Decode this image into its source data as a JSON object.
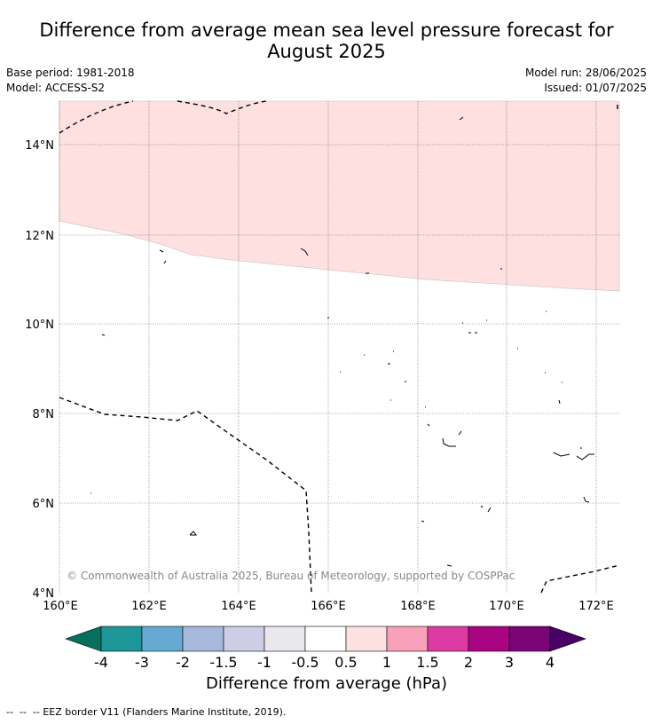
{
  "title_line1": "Difference from average mean sea level pressure forecast for",
  "title_line2": "August 2025",
  "meta": {
    "base_period": "Base period: 1981-2018",
    "model": "Model: ACCESS-S2",
    "model_run": "Model run: 28/06/2025",
    "issued": "Issued: 01/07/2025"
  },
  "map": {
    "lon_ticks": [
      "160°E",
      "162°E",
      "164°E",
      "166°E",
      "168°E",
      "170°E",
      "172°E"
    ],
    "lat_ticks": [
      "14°N",
      "12°N",
      "10°N",
      "8°N",
      "6°N",
      "4°N"
    ],
    "copyright": "© Commonwealth of Australia 2025, Bureau of Meteorology, supported by COSPPac",
    "region_fill": "#fde0df",
    "region_category": "0.5 to 1"
  },
  "colorbar": {
    "title": "Difference from average (hPa)",
    "ticks": [
      "-4",
      "-3",
      "-2",
      "-1.5",
      "-1",
      "-0.5",
      "0.5",
      "1",
      "1.5",
      "2",
      "3",
      "4"
    ],
    "colors": [
      "#066f5d",
      "#1e9596",
      "#66aad4",
      "#a6b9da",
      "#cdcde5",
      "#ebe8ed",
      "#ffffff",
      "#fde0e0",
      "#f9a0ba",
      "#dc3ca1",
      "#a90583",
      "#7b0477",
      "#4a0167"
    ]
  },
  "legend": {
    "line_symbol": "--  --  --",
    "text": "EEZ border V11 (Flanders Marine Institute, 2019)."
  }
}
